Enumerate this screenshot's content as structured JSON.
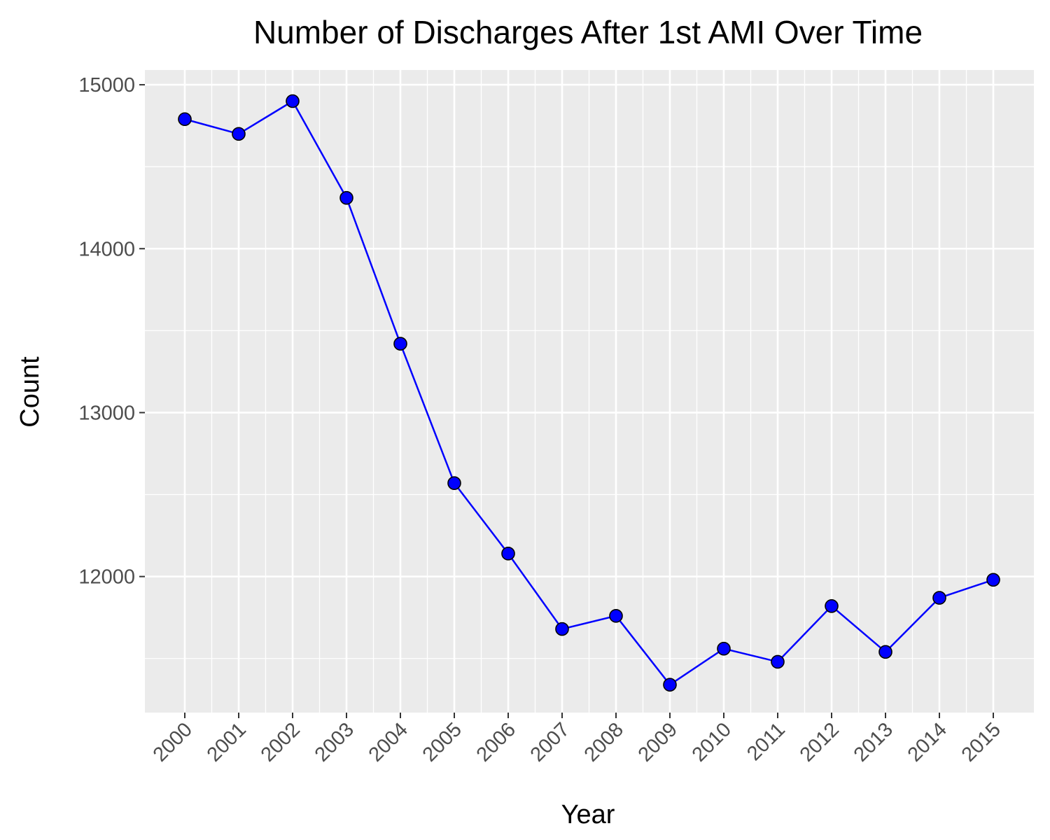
{
  "chart_data": {
    "type": "line",
    "title": "Number of Discharges After 1st AMI Over Time",
    "xlabel": "Year",
    "ylabel": "Count",
    "categories": [
      "2000",
      "2001",
      "2002",
      "2003",
      "2004",
      "2005",
      "2006",
      "2007",
      "2008",
      "2009",
      "2010",
      "2011",
      "2012",
      "2013",
      "2014",
      "2015"
    ],
    "series": [
      {
        "values": [
          14790,
          14700,
          14900,
          14310,
          13420,
          12570,
          12140,
          11680,
          11760,
          11340,
          11560,
          11480,
          11820,
          11540,
          11870,
          11980
        ]
      }
    ],
    "ylim": [
      11170,
      15090
    ],
    "yticks": [
      12000,
      13000,
      14000,
      15000
    ],
    "ytick_labels": [
      "12000",
      "13000",
      "14000",
      "15000"
    ],
    "grid": true,
    "colors": {
      "line": "#0000ff",
      "point_fill": "#0000ff",
      "point_stroke": "#000000",
      "panel_bg": "#ebebeb",
      "grid": "#ffffff",
      "tick_text": "#4d4d4d"
    }
  }
}
